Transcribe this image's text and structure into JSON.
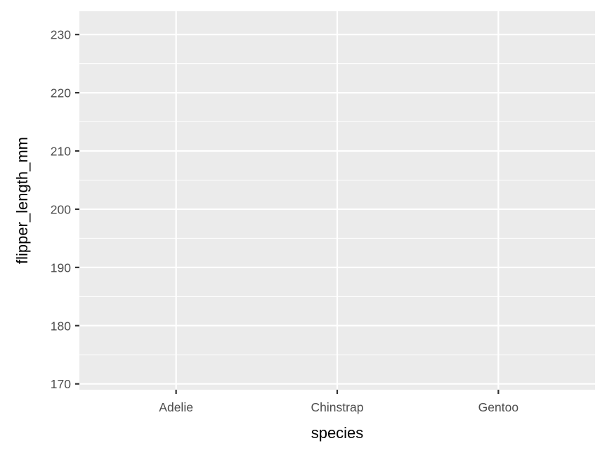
{
  "chart_data": {
    "type": "scatter",
    "categories": [
      "Adelie",
      "Chinstrap",
      "Gentoo"
    ],
    "series": [],
    "xlabel": "species",
    "ylabel": "flipper_length_mm",
    "ylim": [
      169,
      234
    ],
    "yticks": [
      170,
      180,
      190,
      200,
      210,
      220,
      230
    ],
    "grid": true,
    "legend": "none",
    "colors": {
      "panel": "#ebebeb",
      "gridline": "#ffffff",
      "tick": "#333333",
      "tick_label": "#4d4d4d",
      "title": "#000000"
    }
  }
}
